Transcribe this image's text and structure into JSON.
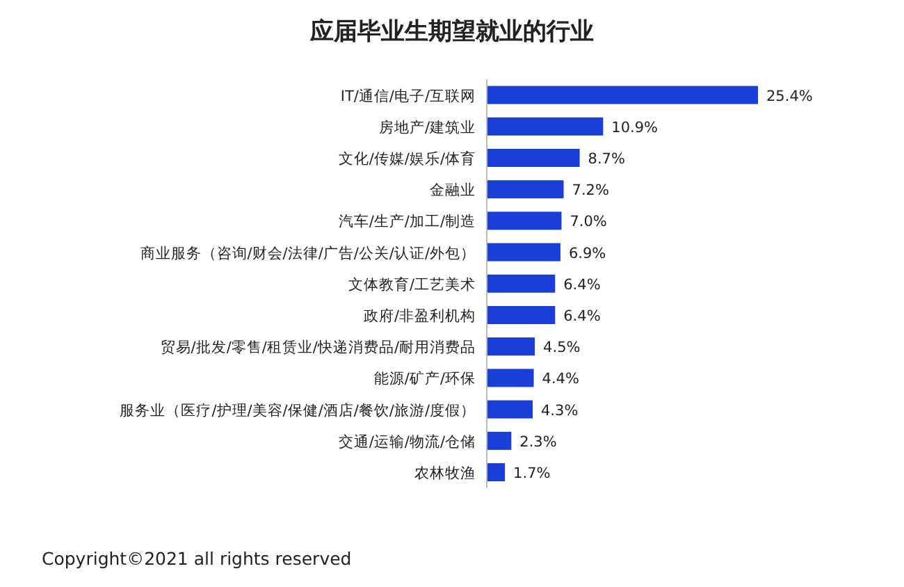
{
  "chart_data": {
    "type": "bar",
    "orientation": "horizontal",
    "title": "应届毕业生期望就业的行业",
    "categories": [
      "IT/通信/电子/互联网",
      "房地产/建筑业",
      "文化/传媒/娱乐/体育",
      "金融业",
      "汽车/生产/加工/制造",
      "商业服务（咨询/财会/法律/广告/公关/认证/外包）",
      "文体教育/工艺美术",
      "政府/非盈利机构",
      "贸易/批发/零售/租赁业/快递消费品/耐用消费品",
      "能源/矿产/环保",
      "服务业（医疗/护理/美容/保健/酒店/餐饮/旅游/度假）",
      "交通/运输/物流/仓储",
      "农林牧渔"
    ],
    "values": [
      25.4,
      10.9,
      8.7,
      7.2,
      7.0,
      6.9,
      6.4,
      6.4,
      4.5,
      4.4,
      4.3,
      2.3,
      1.7
    ],
    "value_labels": [
      "25.4%",
      "10.9%",
      "8.7%",
      "7.2%",
      "7.0%",
      "6.9%",
      "6.4%",
      "6.4%",
      "4.5%",
      "4.4%",
      "4.3%",
      "2.3%",
      "1.7%"
    ],
    "color": "#1a3fd6",
    "annotations": [
      "Copyright©2021 all rights reserved"
    ]
  }
}
